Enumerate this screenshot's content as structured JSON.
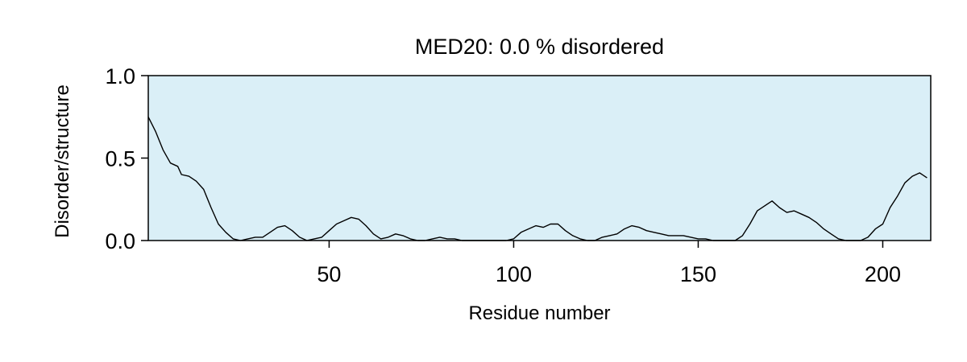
{
  "chart_data": {
    "type": "line",
    "title": "MED20: 0.0 % disordered",
    "xlabel": "Residue number",
    "ylabel": "Disorder/structure",
    "xlim": [
      1,
      213
    ],
    "ylim": [
      0,
      1.0
    ],
    "x_ticks": [
      50,
      100,
      150,
      200
    ],
    "x_tick_labels": [
      "50",
      "100",
      "150",
      "200"
    ],
    "y_ticks": [
      0,
      0.5,
      1.0
    ],
    "y_tick_labels": [
      "0.0",
      "0.5",
      "1.0"
    ],
    "grid": false,
    "background_color": "#daeff7",
    "line_color": "#000000",
    "series": [
      {
        "x": [
          1,
          3,
          5,
          7,
          9,
          10,
          12,
          14,
          16,
          18,
          20,
          22,
          24,
          26,
          28,
          30,
          32,
          34,
          36,
          38,
          40,
          42,
          44,
          46,
          48,
          50,
          52,
          54,
          56,
          58,
          60,
          62,
          64,
          66,
          68,
          70,
          72,
          74,
          76,
          78,
          80,
          82,
          84,
          86,
          88,
          90,
          92,
          94,
          96,
          98,
          100,
          102,
          104,
          106,
          108,
          110,
          112,
          114,
          116,
          118,
          120,
          122,
          124,
          126,
          128,
          130,
          132,
          134,
          136,
          138,
          140,
          142,
          144,
          146,
          148,
          150,
          152,
          154,
          156,
          158,
          160,
          162,
          164,
          166,
          168,
          170,
          172,
          174,
          176,
          178,
          180,
          182,
          184,
          186,
          188,
          190,
          192,
          194,
          196,
          198,
          200,
          202,
          204,
          206,
          208,
          210,
          212
        ],
        "y": [
          0.75,
          0.66,
          0.55,
          0.47,
          0.45,
          0.4,
          0.39,
          0.36,
          0.31,
          0.2,
          0.1,
          0.05,
          0.01,
          0.0,
          0.01,
          0.02,
          0.02,
          0.05,
          0.08,
          0.09,
          0.06,
          0.02,
          0.0,
          0.01,
          0.02,
          0.06,
          0.1,
          0.12,
          0.14,
          0.13,
          0.09,
          0.04,
          0.01,
          0.02,
          0.04,
          0.03,
          0.01,
          0.0,
          0.0,
          0.01,
          0.02,
          0.01,
          0.01,
          0.0,
          0.0,
          0.0,
          0.0,
          0.0,
          0.0,
          0.0,
          0.01,
          0.05,
          0.07,
          0.09,
          0.08,
          0.1,
          0.1,
          0.06,
          0.03,
          0.01,
          0.0,
          0.0,
          0.02,
          0.03,
          0.04,
          0.07,
          0.09,
          0.08,
          0.06,
          0.05,
          0.04,
          0.03,
          0.03,
          0.03,
          0.02,
          0.01,
          0.01,
          0.0,
          0.0,
          0.0,
          0.0,
          0.03,
          0.1,
          0.18,
          0.21,
          0.24,
          0.2,
          0.17,
          0.18,
          0.16,
          0.14,
          0.11,
          0.07,
          0.04,
          0.01,
          0.0,
          0.0,
          0.0,
          0.02,
          0.07,
          0.1,
          0.2,
          0.27,
          0.35,
          0.39,
          0.41,
          0.38
        ]
      }
    ]
  }
}
